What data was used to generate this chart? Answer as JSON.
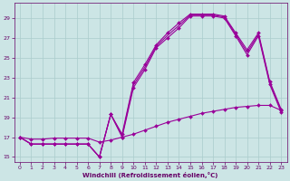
{
  "xlabel": "Windchill (Refroidissement éolien,°C)",
  "x": [
    0,
    1,
    2,
    3,
    4,
    5,
    6,
    7,
    8,
    9,
    10,
    11,
    12,
    13,
    14,
    15,
    16,
    17,
    18,
    19,
    20,
    21,
    22,
    23
  ],
  "line_main_y": [
    17.0,
    16.3,
    16.3,
    16.3,
    16.3,
    16.3,
    16.3,
    15.0,
    19.3,
    17.0,
    22.0,
    23.8,
    26.0,
    27.0,
    28.0,
    29.2,
    29.2,
    29.2,
    29.0,
    27.2,
    25.3,
    27.2,
    22.3,
    19.5
  ],
  "line_upper_y": [
    17.0,
    16.3,
    16.3,
    16.3,
    16.3,
    16.3,
    16.3,
    15.0,
    19.3,
    17.3,
    22.5,
    24.3,
    26.3,
    27.5,
    28.5,
    29.4,
    29.4,
    29.4,
    29.2,
    27.5,
    25.8,
    27.5,
    22.6,
    19.8
  ],
  "line_mid_y": [
    17.0,
    16.3,
    16.3,
    16.3,
    16.3,
    16.3,
    16.3,
    15.0,
    19.3,
    17.15,
    22.25,
    24.05,
    26.15,
    27.25,
    28.25,
    29.3,
    29.3,
    29.3,
    29.1,
    27.35,
    25.55,
    27.35,
    22.45,
    19.65
  ],
  "line_flat_y": [
    17.0,
    16.8,
    16.8,
    16.9,
    16.9,
    16.9,
    16.9,
    16.5,
    16.7,
    17.0,
    17.3,
    17.7,
    18.1,
    18.5,
    18.8,
    19.1,
    19.4,
    19.6,
    19.8,
    20.0,
    20.1,
    20.2,
    20.2,
    19.7
  ],
  "color_main": "#990099",
  "bg_color": "#cce5e5",
  "grid_color": "#aacccc",
  "tick_color": "#660066",
  "ylim": [
    14.5,
    30.5
  ],
  "xlim": [
    -0.5,
    23.5
  ],
  "yticks": [
    15,
    17,
    19,
    21,
    23,
    25,
    27,
    29
  ],
  "xticks": [
    0,
    1,
    2,
    3,
    4,
    5,
    6,
    7,
    8,
    9,
    10,
    11,
    12,
    13,
    14,
    15,
    16,
    17,
    18,
    19,
    20,
    21,
    22,
    23
  ]
}
